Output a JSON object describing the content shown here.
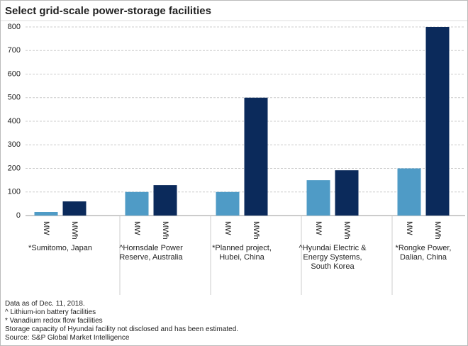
{
  "chart_data": {
    "type": "bar",
    "title": "Select grid-scale power-storage facilities",
    "categories": [
      "*Sumitomo, Japan",
      "^Hornsdale Power Reserve, Australia",
      "*Planned project, Hubei, China",
      "^Hyundai Electric & Energy Systems, South Korea",
      "*Rongke Power, Dalian, China"
    ],
    "series": [
      {
        "name": "MW",
        "color": "#4f9bc6",
        "values": [
          15,
          100,
          100,
          150,
          200
        ]
      },
      {
        "name": "MWh",
        "color": "#0b2a5b",
        "values": [
          60,
          129,
          500,
          192,
          800
        ]
      }
    ],
    "ylim": [
      0,
      800
    ],
    "yticks": [
      0,
      100,
      200,
      300,
      400,
      500,
      600,
      700,
      800
    ],
    "grid": true,
    "notes": [
      "Data as of Dec. 11, 2018.",
      "^ Lithium-ion battery facilities",
      "* Vanadium redox flow facilities",
      "Storage capacity of Hyundai facility not disclosed and has been estimated.",
      "Source: S&P Global Market Intelligence"
    ]
  }
}
